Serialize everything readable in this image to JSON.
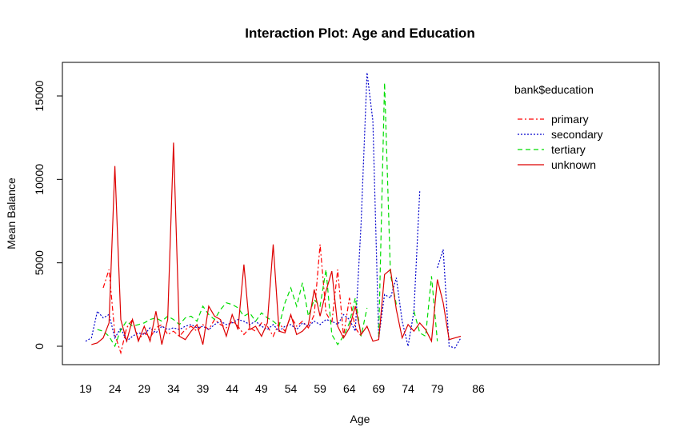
{
  "chart_data": {
    "type": "line",
    "title": "Interaction Plot: Age and Education",
    "xlabel": "Age",
    "ylabel": "Mean Balance",
    "x_tick_labels": [
      "19",
      "24",
      "29",
      "34",
      "39",
      "44",
      "49",
      "54",
      "59",
      "64",
      "69",
      "74",
      "79",
      "86"
    ],
    "y_tick_labels": [
      "0",
      "5000",
      "10000",
      "15000"
    ],
    "y_ticks": [
      0,
      5000,
      10000,
      15000
    ],
    "ylim": [
      -1200,
      16500
    ],
    "grid": false,
    "legend_placement": "top-right",
    "legend_title": "bank$education",
    "series": [
      {
        "name": "primary",
        "color": "#ff0000",
        "dash": "6,3,2,3",
        "points": [
          [
            22,
            3500
          ],
          [
            23,
            4600
          ],
          [
            24,
            700
          ],
          [
            25,
            -400
          ],
          [
            26,
            1100
          ],
          [
            27,
            1600
          ],
          [
            28,
            400
          ],
          [
            29,
            800
          ],
          [
            30,
            500
          ],
          [
            31,
            1100
          ],
          [
            32,
            1300
          ],
          [
            33,
            700
          ],
          [
            34,
            900
          ],
          [
            35,
            600
          ],
          [
            36,
            1000
          ],
          [
            37,
            1200
          ],
          [
            38,
            900
          ],
          [
            39,
            1300
          ],
          [
            40,
            1000
          ],
          [
            41,
            1600
          ],
          [
            42,
            1300
          ],
          [
            43,
            1100
          ],
          [
            44,
            1500
          ],
          [
            45,
            1200
          ],
          [
            46,
            700
          ],
          [
            47,
            1100
          ],
          [
            48,
            900
          ],
          [
            49,
            1400
          ],
          [
            50,
            1200
          ],
          [
            51,
            600
          ],
          [
            52,
            1400
          ],
          [
            53,
            900
          ],
          [
            54,
            1800
          ],
          [
            55,
            1200
          ],
          [
            56,
            1500
          ],
          [
            57,
            1100
          ],
          [
            58,
            1900
          ],
          [
            59,
            6100
          ],
          [
            60,
            2000
          ],
          [
            61,
            1400
          ],
          [
            62,
            4600
          ],
          [
            63,
            600
          ],
          [
            64,
            2900
          ],
          [
            65,
            1100
          ],
          [
            66,
            600
          ]
        ]
      },
      {
        "name": "secondary",
        "color": "#0000cc",
        "dash": "2,2",
        "points": [
          [
            19,
            300
          ],
          [
            20,
            500
          ],
          [
            21,
            2100
          ],
          [
            22,
            1700
          ],
          [
            23,
            1900
          ],
          [
            24,
            500
          ],
          [
            25,
            1100
          ],
          [
            26,
            300
          ],
          [
            27,
            600
          ],
          [
            28,
            800
          ],
          [
            29,
            700
          ],
          [
            30,
            1100
          ],
          [
            31,
            800
          ],
          [
            32,
            1200
          ],
          [
            33,
            1000
          ],
          [
            34,
            1100
          ],
          [
            35,
            1000
          ],
          [
            36,
            1200
          ],
          [
            37,
            1300
          ],
          [
            38,
            1100
          ],
          [
            39,
            1200
          ],
          [
            40,
            1000
          ],
          [
            41,
            1300
          ],
          [
            42,
            1500
          ],
          [
            43,
            1300
          ],
          [
            44,
            1400
          ],
          [
            45,
            1600
          ],
          [
            46,
            1500
          ],
          [
            47,
            1300
          ],
          [
            48,
            1500
          ],
          [
            49,
            1200
          ],
          [
            50,
            1000
          ],
          [
            51,
            1300
          ],
          [
            52,
            900
          ],
          [
            53,
            1200
          ],
          [
            54,
            1300
          ],
          [
            55,
            1000
          ],
          [
            56,
            1400
          ],
          [
            57,
            1200
          ],
          [
            58,
            1500
          ],
          [
            59,
            1300
          ],
          [
            60,
            1600
          ],
          [
            61,
            1500
          ],
          [
            62,
            1300
          ],
          [
            63,
            1900
          ],
          [
            64,
            1600
          ],
          [
            65,
            900
          ],
          [
            66,
            7400
          ],
          [
            67,
            16400
          ],
          [
            68,
            13500
          ],
          [
            69,
            500
          ],
          [
            70,
            3100
          ],
          [
            71,
            2900
          ],
          [
            72,
            4100
          ],
          [
            73,
            1500
          ],
          [
            74,
            0
          ],
          [
            75,
            2100
          ],
          [
            76,
            9300
          ],
          [
            79,
            4700
          ],
          [
            80,
            5800
          ],
          [
            81,
            0
          ],
          [
            82,
            -100
          ],
          [
            83,
            500
          ]
        ]
      },
      {
        "name": "tertiary",
        "color": "#00dd00",
        "dash": "6,4",
        "points": [
          [
            21,
            1000
          ],
          [
            22,
            900
          ],
          [
            23,
            600
          ],
          [
            24,
            0
          ],
          [
            25,
            1000
          ],
          [
            26,
            1500
          ],
          [
            27,
            1200
          ],
          [
            28,
            1300
          ],
          [
            29,
            1400
          ],
          [
            30,
            1600
          ],
          [
            31,
            1700
          ],
          [
            32,
            1500
          ],
          [
            33,
            1800
          ],
          [
            34,
            1600
          ],
          [
            35,
            1300
          ],
          [
            36,
            1700
          ],
          [
            37,
            1800
          ],
          [
            38,
            1500
          ],
          [
            39,
            2400
          ],
          [
            40,
            1900
          ],
          [
            41,
            1600
          ],
          [
            42,
            2200
          ],
          [
            43,
            2600
          ],
          [
            44,
            2500
          ],
          [
            45,
            2300
          ],
          [
            46,
            1800
          ],
          [
            47,
            2000
          ],
          [
            48,
            1500
          ],
          [
            49,
            2000
          ],
          [
            50,
            1700
          ],
          [
            51,
            1500
          ],
          [
            52,
            1200
          ],
          [
            53,
            2600
          ],
          [
            54,
            3500
          ],
          [
            55,
            2400
          ],
          [
            56,
            3800
          ],
          [
            57,
            1800
          ],
          [
            58,
            2800
          ],
          [
            59,
            2400
          ],
          [
            60,
            4600
          ],
          [
            61,
            700
          ],
          [
            62,
            100
          ],
          [
            63,
            600
          ],
          [
            64,
            1400
          ],
          [
            65,
            2900
          ],
          [
            66,
            600
          ],
          [
            67,
            2300
          ],
          [
            69,
            600
          ],
          [
            70,
            15800
          ],
          [
            71,
            4300
          ],
          [
            72,
            2500
          ],
          [
            75,
            2100
          ],
          [
            76,
            800
          ],
          [
            77,
            600
          ],
          [
            78,
            4200
          ],
          [
            79,
            300
          ]
        ]
      },
      {
        "name": "unknown",
        "color": "#dd0000",
        "dash": "",
        "points": [
          [
            20,
            100
          ],
          [
            21,
            200
          ],
          [
            22,
            500
          ],
          [
            23,
            1400
          ],
          [
            24,
            10800
          ],
          [
            25,
            1600
          ],
          [
            26,
            300
          ],
          [
            27,
            1600
          ],
          [
            28,
            300
          ],
          [
            29,
            1200
          ],
          [
            30,
            300
          ],
          [
            31,
            2100
          ],
          [
            32,
            100
          ],
          [
            33,
            1600
          ],
          [
            34,
            12200
          ],
          [
            35,
            600
          ],
          [
            36,
            400
          ],
          [
            37,
            900
          ],
          [
            38,
            1300
          ],
          [
            39,
            100
          ],
          [
            40,
            2400
          ],
          [
            41,
            1800
          ],
          [
            42,
            1600
          ],
          [
            43,
            600
          ],
          [
            44,
            1900
          ],
          [
            45,
            1000
          ],
          [
            46,
            4900
          ],
          [
            47,
            1000
          ],
          [
            48,
            1200
          ],
          [
            49,
            600
          ],
          [
            50,
            1400
          ],
          [
            51,
            6100
          ],
          [
            52,
            900
          ],
          [
            53,
            800
          ],
          [
            54,
            1900
          ],
          [
            55,
            700
          ],
          [
            56,
            900
          ],
          [
            57,
            1300
          ],
          [
            58,
            3400
          ],
          [
            59,
            1800
          ],
          [
            60,
            3300
          ],
          [
            61,
            4500
          ],
          [
            62,
            1200
          ],
          [
            63,
            500
          ],
          [
            64,
            1100
          ],
          [
            65,
            2400
          ],
          [
            66,
            700
          ],
          [
            67,
            1200
          ],
          [
            68,
            300
          ],
          [
            69,
            400
          ],
          [
            70,
            4300
          ],
          [
            71,
            4600
          ],
          [
            72,
            2200
          ],
          [
            73,
            500
          ],
          [
            74,
            1300
          ],
          [
            75,
            900
          ],
          [
            76,
            1400
          ],
          [
            77,
            1000
          ],
          [
            78,
            300
          ],
          [
            79,
            4000
          ],
          [
            80,
            2600
          ],
          [
            81,
            400
          ],
          [
            82,
            500
          ],
          [
            83,
            600
          ]
        ]
      }
    ]
  }
}
